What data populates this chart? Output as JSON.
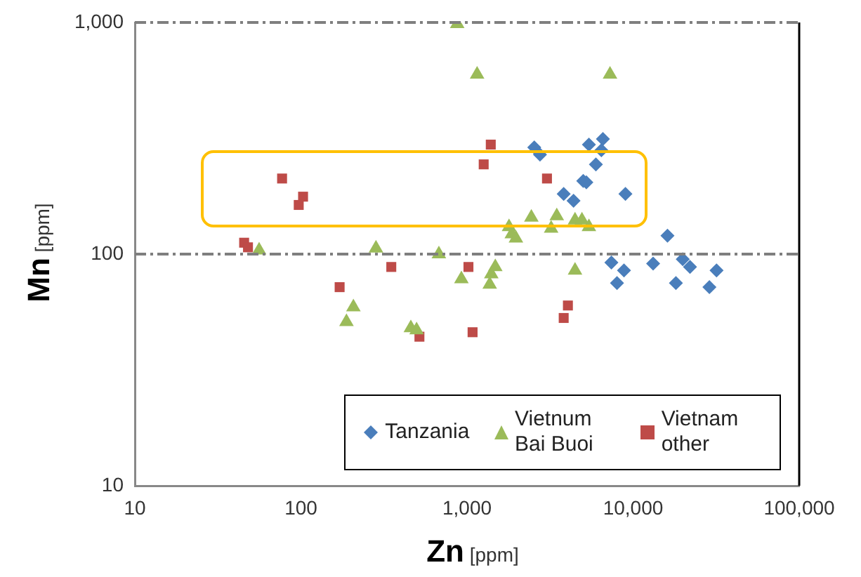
{
  "chart_data": {
    "type": "scatter",
    "xlabel": "Zn [ppm]",
    "ylabel": "Mn [ppm]",
    "log": "xy",
    "xlim": [
      10,
      100000
    ],
    "xticks": [
      {
        "value": 10,
        "label": "10"
      },
      {
        "value": 100,
        "label": "100"
      },
      {
        "value": 1000,
        "label": "1,000"
      },
      {
        "value": 10000,
        "label": "10,000"
      },
      {
        "value": 100000,
        "label": "100,000"
      }
    ],
    "ylim": [
      10,
      1000
    ],
    "yticks": [
      {
        "value": 10,
        "label": "10"
      },
      {
        "value": 100,
        "label": "100"
      },
      {
        "value": 1000,
        "label": "1,000"
      }
    ],
    "grid": false,
    "legend": "bottom right",
    "ref_lines": [
      {
        "axis": "y",
        "value": 100,
        "label": null,
        "color": "#7f7f7f",
        "line_style": "dashdot"
      }
    ],
    "series": [
      {
        "name": "Tanzania",
        "color": "#4a7ebb",
        "marker": "diamond",
        "x": [
          2540,
          2750,
          5420,
          6580,
          6440,
          5970,
          5010,
          5230,
          3820,
          4380,
          8990,
          16100,
          7400,
          8810,
          8000,
          13200,
          19900,
          22000,
          18100,
          28800,
          31800
        ],
        "values": [
          289,
          269,
          297,
          314,
          281,
          244,
          207,
          204,
          182,
          170,
          182,
          120,
          92,
          85,
          75,
          91,
          95,
          88,
          75,
          72,
          85
        ]
      },
      {
        "name": "Vietnum Bai Buoi",
        "color": "#9bbb59",
        "marker": "triangle",
        "x": [
          873,
          1150,
          56,
          283,
          677,
          925,
          207,
          188,
          459,
          497,
          7260,
          1860,
          1970,
          1790,
          2440,
          3470,
          3210,
          4470,
          4920,
          5420,
          4470,
          1480,
          1400,
          1370
        ],
        "values": [
          986,
          597,
          104,
          106,
          100,
          78,
          59,
          51,
          48,
          47,
          597,
          122,
          117,
          131,
          144,
          146,
          129,
          140,
          140,
          131,
          85,
          88,
          82,
          74
        ]
      },
      {
        "name": "Vietnam other",
        "color": "#be4b48",
        "marker": "square",
        "x": [
          77,
          103,
          97,
          45.5,
          48,
          350,
          171,
          517,
          1020,
          1080,
          1390,
          1260,
          3030,
          4050,
          3820
        ],
        "values": [
          212,
          177,
          163,
          112,
          107,
          88,
          72,
          44,
          88,
          46,
          297,
          244,
          212,
          60,
          53
        ]
      }
    ]
  }
}
